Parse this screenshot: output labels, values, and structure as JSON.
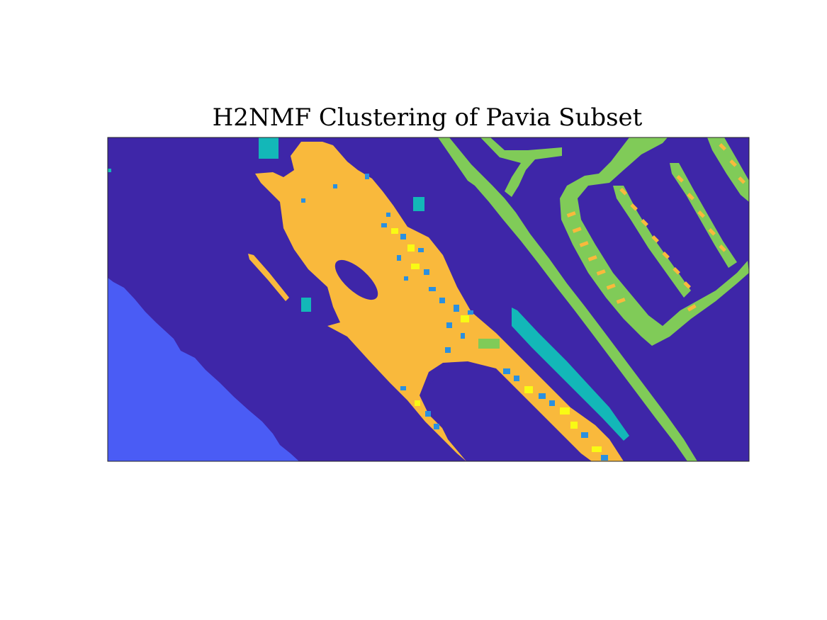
{
  "chart_data": {
    "type": "heatmap",
    "title": "H2NMF Clustering of Pavia Subset",
    "xlabel": "",
    "ylabel": "",
    "axes_ticks": false,
    "grid": false,
    "legend": "none",
    "colormap": "parula",
    "clusters": [
      {
        "id": 1,
        "color": "#3e26a8"
      },
      {
        "id": 2,
        "color": "#4a5cf5"
      },
      {
        "id": 3,
        "color": "#13b7b8"
      },
      {
        "id": 4,
        "color": "#2a90e0"
      },
      {
        "id": 5,
        "color": "#80cb58"
      },
      {
        "id": 6,
        "color": "#f9b93c"
      },
      {
        "id": 7,
        "color": "#f9fb14"
      }
    ]
  }
}
